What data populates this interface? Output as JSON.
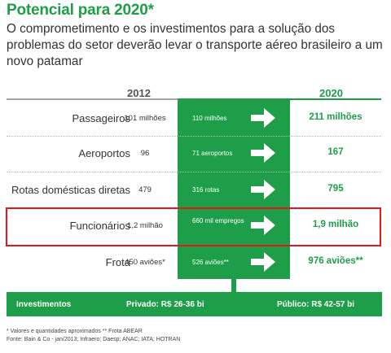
{
  "title": "Potencial para 2020*",
  "subtitle": "O comprometimento e os investimentos para a solução dos problemas do setor deverão levar o transporte aéreo brasileiro a um novo patamar",
  "years": {
    "from": "2012",
    "to": "2020"
  },
  "rows": [
    {
      "label": "Passageiros",
      "v2012": "101 milhões",
      "mid": "110 milhões",
      "v2020": "211 milhões"
    },
    {
      "label": "Aeroportos",
      "v2012": "96",
      "mid": "71 aeroportos",
      "v2020": "167"
    },
    {
      "label": "Rotas domésticas diretas",
      "v2012": "479",
      "mid": "316 rotas",
      "v2020": "795"
    },
    {
      "label": "Funcionários",
      "v2012": "1,2 milhão",
      "mid": "660 mil empregos",
      "v2020": "1,9 milhão",
      "highlighted": true
    },
    {
      "label": "Frota",
      "v2012": "450 aviões*",
      "mid": "526 aviões**",
      "v2020": "976 aviões**"
    }
  ],
  "investments": {
    "label": "Investimentos",
    "private": "Privado: R$ 26-36 bi",
    "public": "Público: R$ 42-57 bi"
  },
  "footnotes": [
    "* Valores e quantidades aproximados ** Frota ABEAR",
    "Fonte: Bain & Co - jan/2013; Infraero; Daesp; ANAC; IATA; HOTRAN"
  ],
  "colors": {
    "green": "#1e9e48",
    "highlight": "#e3171c",
    "text": "#333333"
  },
  "icons": {
    "arrow": "right-arrow-icon"
  }
}
